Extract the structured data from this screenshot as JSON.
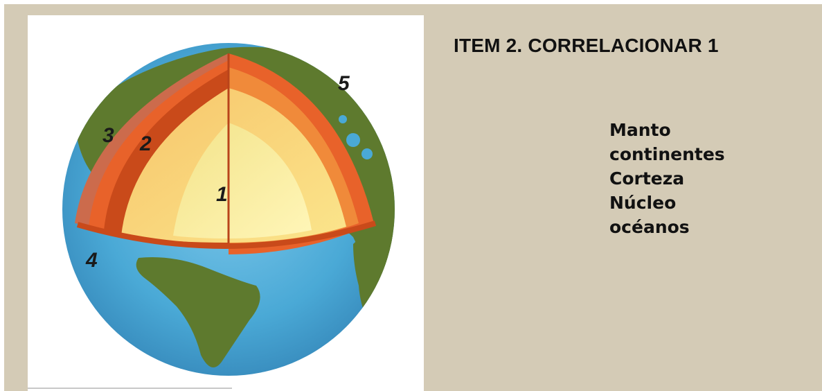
{
  "title": "ITEM 2. CORRELACIONAR 1",
  "diagram": {
    "markers": [
      "1",
      "2",
      "3",
      "4",
      "5"
    ]
  },
  "options": [
    "Manto",
    "continentes",
    "Corteza",
    "Núcleo",
    "océanos"
  ],
  "colors": {
    "background": "#d4cbb6",
    "ocean": "#4aa9d6",
    "land": "#5e7a2e",
    "crust": "#cc6b4c",
    "mantle_outer": "#e8622a",
    "mantle_inner": "#c94a1a",
    "core_outer": "#f3a94a",
    "core_inner": "#fbe58c"
  }
}
